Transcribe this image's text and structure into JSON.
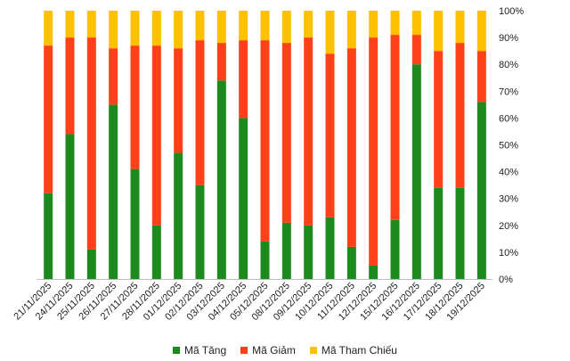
{
  "chart_data": {
    "type": "bar",
    "stacked": true,
    "percent": true,
    "categories": [
      "21/11/2025",
      "24/11/2025",
      "25/11/2025",
      "26/11/2025",
      "27/11/2025",
      "28/11/2025",
      "01/12/2025",
      "02/12/2025",
      "03/12/2025",
      "04/12/2025",
      "05/12/2025",
      "08/12/2025",
      "09/12/2025",
      "10/12/2025",
      "11/12/2025",
      "12/12/2025",
      "15/12/2025",
      "16/12/2025",
      "17/12/2025",
      "18/12/2025",
      "19/12/2025"
    ],
    "series": [
      {
        "name": "Mã Tăng",
        "color": "#1e8a1e",
        "values": [
          32,
          54,
          11,
          65,
          41,
          20,
          47,
          35,
          74,
          60,
          14,
          21,
          20,
          23,
          12,
          5,
          22,
          80,
          34,
          34,
          66
        ]
      },
      {
        "name": "Mã Giảm",
        "color": "#ff4019",
        "values": [
          55,
          36,
          79,
          21,
          46,
          67,
          39,
          54,
          14,
          29,
          75,
          67,
          70,
          61,
          74,
          85,
          69,
          11,
          51,
          54,
          19
        ]
      },
      {
        "name": "Mã Tham Chiếu",
        "color": "#ffc000",
        "values": [
          13,
          10,
          10,
          14,
          13,
          13,
          14,
          11,
          12,
          11,
          11,
          12,
          10,
          16,
          14,
          10,
          9,
          9,
          15,
          12,
          15
        ]
      }
    ],
    "y_ticks": [
      "0%",
      "10%",
      "20%",
      "30%",
      "40%",
      "50%",
      "60%",
      "70%",
      "80%",
      "90%",
      "100%"
    ],
    "ylim": [
      0,
      100
    ],
    "title": "",
    "xlabel": "",
    "ylabel": "",
    "legend_position": "bottom"
  }
}
